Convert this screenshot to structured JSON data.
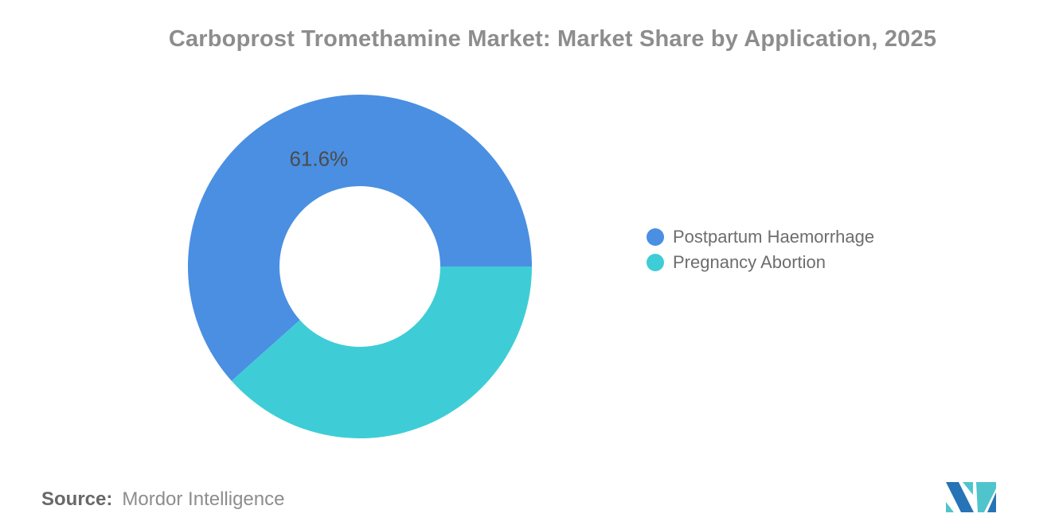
{
  "title": "Carboprost Tromethamine Market: Market Share by Application, 2025",
  "chart_data": {
    "type": "pie",
    "subtype": "donut",
    "title": "Carboprost Tromethamine Market: Market Share by Application, 2025",
    "slices": [
      {
        "label": "Postpartum Haemorrhage",
        "value": 61.6,
        "data_label": "61.6%",
        "color": "#4A8FE2"
      },
      {
        "label": "Pregnancy Abortion",
        "value": 38.4,
        "data_label": "",
        "color": "#3ECDD6"
      }
    ],
    "layout": {
      "legend_position": "right",
      "start_angle_deg": 90,
      "direction": "counterclockwise",
      "outer_radius": 216,
      "inner_radius": 101,
      "label_radius": 145
    },
    "data_label_color": "#4B4B4B"
  },
  "source": {
    "label": "Source:",
    "text": "Mordor Intelligence"
  },
  "logo": {
    "name": "Mordor Intelligence logo",
    "colors": {
      "blue": "#2673B6",
      "teal": "#50C4CC"
    }
  }
}
